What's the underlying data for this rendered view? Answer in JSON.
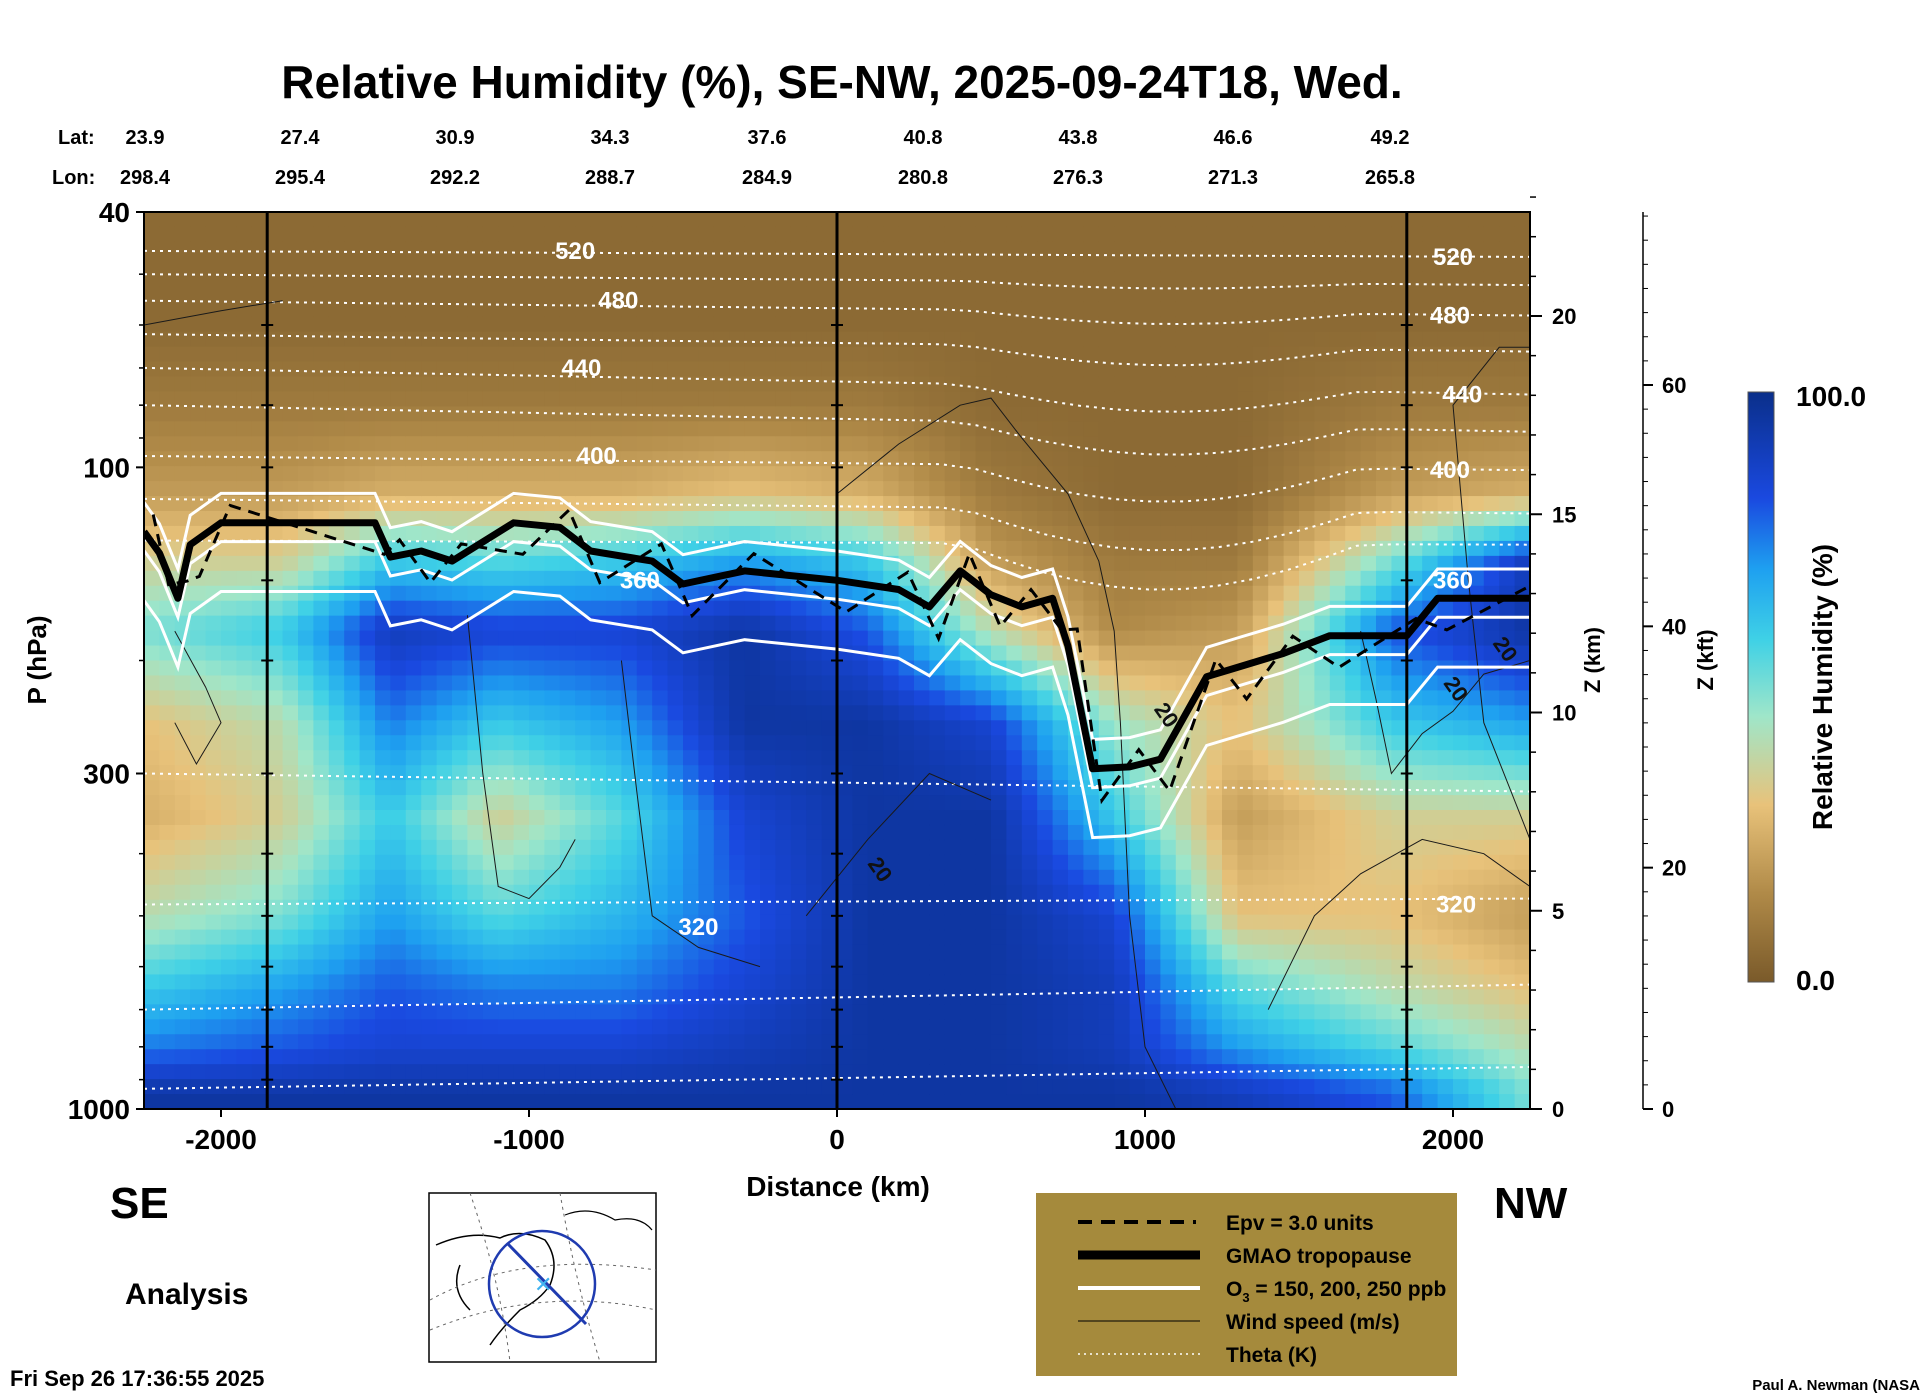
{
  "chart_data": {
    "type": "heatmap",
    "title": "Relative Humidity (%), SE-NW, 2025-09-24T18, Wed.",
    "xlabel": "Distance (km)",
    "ylabel": "P (hPa)",
    "z_km_label": "Z (km)",
    "z_kft_label": "Z (kft)",
    "colorbar_label": "Relative Humidity (%)",
    "colorbar_range": [
      0.0,
      100.0
    ],
    "colorbar_max_label": "100.0",
    "colorbar_min_label": "0.0",
    "xlim": [
      -2250,
      2250
    ],
    "ylim_hpa": [
      1000,
      40
    ],
    "x_ticks": [
      -2000,
      -1000,
      0,
      1000,
      2000
    ],
    "x_tick_labels": [
      "-2000",
      "-1000",
      "0",
      "1000",
      "2000"
    ],
    "y_ticks": [
      40,
      100,
      300,
      1000
    ],
    "y_tick_labels": [
      "40",
      "100",
      "300",
      "1000"
    ],
    "z_km_ticks": [
      0,
      5,
      10,
      15,
      20
    ],
    "z_km_tick_labels": [
      "0",
      "5",
      "10",
      "15",
      "20"
    ],
    "z_kft_ticks": [
      0,
      20,
      40,
      60
    ],
    "z_kft_tick_labels": [
      "0",
      "20",
      "40",
      "60"
    ],
    "lat_label": "Lat:",
    "lon_label": "Lon:",
    "lat_values": [
      "23.9",
      "27.4",
      "30.9",
      "34.3",
      "37.6",
      "40.8",
      "43.8",
      "46.6",
      "49.2"
    ],
    "lon_values": [
      "298.4",
      "295.4",
      "292.2",
      "288.7",
      "284.9",
      "280.8",
      "276.3",
      "271.3",
      "265.8"
    ],
    "left_direction": "SE",
    "right_direction": "NW",
    "theta_labels": [
      {
        "text": "520",
        "x": -850,
        "p": 46
      },
      {
        "text": "480",
        "x": -710,
        "p": 55
      },
      {
        "text": "440",
        "x": -830,
        "p": 70
      },
      {
        "text": "400",
        "x": -780,
        "p": 96
      },
      {
        "text": "360",
        "x": -640,
        "p": 150
      },
      {
        "text": "320",
        "x": -450,
        "p": 520
      },
      {
        "text": "520",
        "x": 2000,
        "p": 47
      },
      {
        "text": "480",
        "x": 1990,
        "p": 58
      },
      {
        "text": "440",
        "x": 2030,
        "p": 77
      },
      {
        "text": "400",
        "x": 1990,
        "p": 101
      },
      {
        "text": "360",
        "x": 2000,
        "p": 150
      },
      {
        "text": "320",
        "x": 2010,
        "p": 480
      }
    ],
    "wind_labels": [
      {
        "text": "20",
        "x": 120,
        "p": 430
      },
      {
        "text": "20",
        "x": 1050,
        "p": 247
      },
      {
        "text": "20",
        "x": 1990,
        "p": 225
      },
      {
        "text": "20",
        "x": 2150,
        "p": 195
      }
    ],
    "tropopause_p": [
      {
        "x": -2250,
        "p": 126
      },
      {
        "x": -2200,
        "p": 136
      },
      {
        "x": -2140,
        "p": 160
      },
      {
        "x": -2100,
        "p": 132
      },
      {
        "x": -2000,
        "p": 122
      },
      {
        "x": -1500,
        "p": 122
      },
      {
        "x": -1450,
        "p": 138
      },
      {
        "x": -1350,
        "p": 135
      },
      {
        "x": -1250,
        "p": 140
      },
      {
        "x": -1050,
        "p": 122
      },
      {
        "x": -900,
        "p": 124
      },
      {
        "x": -800,
        "p": 135
      },
      {
        "x": -600,
        "p": 140
      },
      {
        "x": -500,
        "p": 152
      },
      {
        "x": -300,
        "p": 145
      },
      {
        "x": 0,
        "p": 150
      },
      {
        "x": 200,
        "p": 155
      },
      {
        "x": 300,
        "p": 165
      },
      {
        "x": 400,
        "p": 145
      },
      {
        "x": 500,
        "p": 158
      },
      {
        "x": 600,
        "p": 165
      },
      {
        "x": 700,
        "p": 160
      },
      {
        "x": 750,
        "p": 190
      },
      {
        "x": 830,
        "p": 295
      },
      {
        "x": 950,
        "p": 293
      },
      {
        "x": 1050,
        "p": 285
      },
      {
        "x": 1200,
        "p": 212
      },
      {
        "x": 1300,
        "p": 205
      },
      {
        "x": 1450,
        "p": 195
      },
      {
        "x": 1600,
        "p": 183
      },
      {
        "x": 1850,
        "p": 183
      },
      {
        "x": 1950,
        "p": 160
      },
      {
        "x": 2250,
        "p": 160
      }
    ],
    "rh_columns": [
      {
        "x": -2250,
        "rh": [
          5,
          5,
          10,
          20,
          35,
          50,
          30,
          25,
          40,
          60,
          75,
          95
        ]
      },
      {
        "x": -1800,
        "rh": [
          5,
          5,
          10,
          20,
          35,
          60,
          40,
          35,
          50,
          70,
          80,
          95
        ]
      },
      {
        "x": -1450,
        "rh": [
          5,
          5,
          10,
          25,
          60,
          90,
          75,
          60,
          70,
          80,
          85,
          95
        ]
      },
      {
        "x": -1100,
        "rh": [
          5,
          5,
          10,
          25,
          55,
          85,
          60,
          35,
          55,
          75,
          85,
          95
        ]
      },
      {
        "x": -700,
        "rh": [
          5,
          5,
          10,
          25,
          60,
          85,
          70,
          55,
          65,
          75,
          85,
          95
        ]
      },
      {
        "x": -300,
        "rh": [
          5,
          5,
          10,
          30,
          70,
          95,
          95,
          85,
          80,
          85,
          90,
          95
        ]
      },
      {
        "x": 100,
        "rh": [
          5,
          5,
          10,
          25,
          60,
          80,
          95,
          95,
          95,
          95,
          95,
          95
        ]
      },
      {
        "x": 500,
        "rh": [
          5,
          5,
          5,
          10,
          20,
          40,
          85,
          95,
          95,
          95,
          95,
          95
        ]
      },
      {
        "x": 900,
        "rh": [
          5,
          5,
          5,
          5,
          10,
          15,
          45,
          60,
          85,
          90,
          90,
          95
        ]
      },
      {
        "x": 1300,
        "rh": [
          5,
          5,
          5,
          5,
          10,
          20,
          30,
          20,
          30,
          55,
          70,
          90
        ]
      },
      {
        "x": 1800,
        "rh": [
          5,
          5,
          10,
          20,
          50,
          80,
          60,
          35,
          30,
          40,
          55,
          80
        ]
      },
      {
        "x": 2250,
        "rh": [
          5,
          5,
          10,
          25,
          90,
          95,
          70,
          35,
          20,
          30,
          40,
          50
        ]
      }
    ],
    "rh_levels_hpa": [
      40,
      60,
      80,
      110,
      140,
      180,
      250,
      350,
      500,
      650,
      800,
      950
    ]
  },
  "legend": {
    "items": [
      {
        "label": "Epv = 3.0 units",
        "style": "dashed"
      },
      {
        "label": "GMAO tropopause",
        "style": "thick"
      },
      {
        "label": "O",
        "sub": "3",
        "suffix": " = 150, 200, 250 ppb",
        "style": "white"
      },
      {
        "label": "Wind speed (m/s)",
        "style": "thin"
      },
      {
        "label": "Theta (K)",
        "style": "dotted"
      }
    ]
  },
  "footer": {
    "analysis": "Analysis",
    "timestamp": "Fri Sep 26 17:36:55 2025",
    "credit": "Paul A. Newman (NASA"
  },
  "colors": {
    "legend_bg": "#a58a3c",
    "dry": "#7a5a2a",
    "wet": "#0a2f8a"
  }
}
